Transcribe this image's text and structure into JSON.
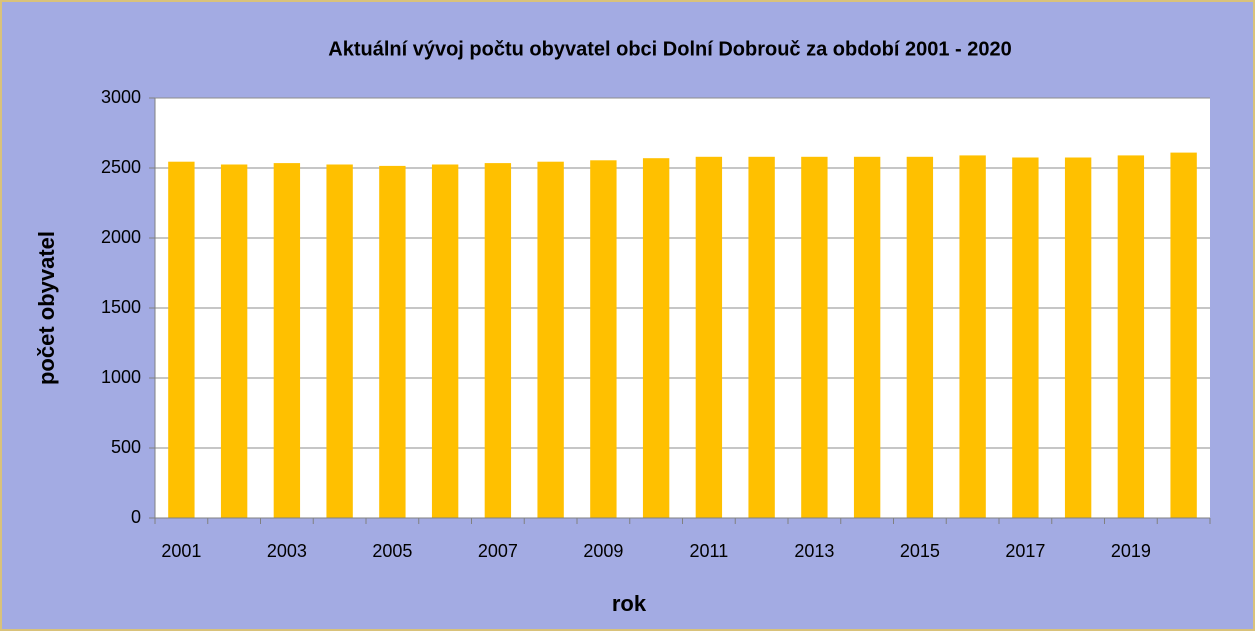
{
  "chart_data": {
    "type": "bar",
    "title": "Aktuální vývoj počtu obyvatel  obci Dolní Dobrouč za období 2001 - 2020",
    "x_label": "rok",
    "y_label": "počet obyvatel",
    "categories": [
      "2001",
      null,
      "2003",
      null,
      "2005",
      null,
      "2007",
      null,
      "2009",
      null,
      "2011",
      null,
      "2013",
      null,
      "2015",
      null,
      "2017",
      null,
      "2019",
      null
    ],
    "values": [
      2545,
      2525,
      2535,
      2525,
      2515,
      2525,
      2535,
      2545,
      2555,
      2570,
      2580,
      2580,
      2580,
      2580,
      2580,
      2590,
      2575,
      2575,
      2590,
      2610
    ],
    "color": "#ffc000",
    "ylim": [
      0,
      3000
    ],
    "yticks": [
      0,
      500,
      1000,
      1500,
      2000,
      2500,
      3000
    ],
    "grid": true
  }
}
